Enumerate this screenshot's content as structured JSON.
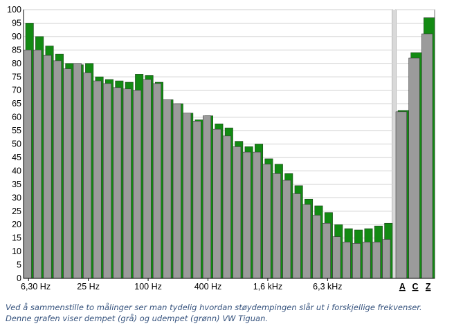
{
  "chart_data": {
    "type": "bar",
    "ylim": [
      0,
      100
    ],
    "y_ticks": [
      0,
      5,
      10,
      15,
      20,
      25,
      30,
      35,
      40,
      45,
      50,
      55,
      60,
      65,
      70,
      75,
      80,
      85,
      90,
      95,
      100
    ],
    "grid": true,
    "x_tick_labels": [
      "6,30 Hz",
      "25 Hz",
      "100 Hz",
      "400 Hz",
      "1,6 kHz",
      "6,3 kHz"
    ],
    "series_colors": {
      "undampened": "#138a13",
      "dampened": "#9b9b9b"
    },
    "bands": {
      "undampened": [
        95,
        90,
        86.5,
        83.5,
        80,
        79.5,
        80,
        75,
        74,
        73.5,
        73,
        76,
        75.5,
        73,
        66.5,
        65,
        61.5,
        59,
        60.5,
        57.5,
        56,
        51,
        49,
        50,
        44.5,
        42.5,
        39,
        34.5,
        29.5,
        27,
        24.5,
        20,
        18.5,
        18,
        18.5,
        19.5,
        20.5
      ],
      "dampened": [
        85,
        85,
        83,
        81,
        78,
        80,
        76.5,
        73.5,
        72.5,
        71,
        70.5,
        70,
        74,
        72.5,
        66.5,
        65,
        61.5,
        58.5,
        60.5,
        55.5,
        53,
        49,
        47,
        47,
        42.5,
        39,
        36.5,
        31.5,
        27.5,
        23.5,
        20.5,
        15.5,
        13.5,
        13,
        13.5,
        13.5,
        14.5
      ]
    },
    "weighted": {
      "categories": [
        "A",
        "C",
        "Z"
      ],
      "undampened": [
        62.5,
        84,
        97
      ],
      "dampened": [
        62,
        82,
        91
      ]
    }
  },
  "caption": "Ved å sammenstille to målinger ser man tydelig hvordan støydempingen slår ut i forskjellige frekvenser. Denne grafen viser dempet (grå) og udempet (grønn) VW Tiguan."
}
